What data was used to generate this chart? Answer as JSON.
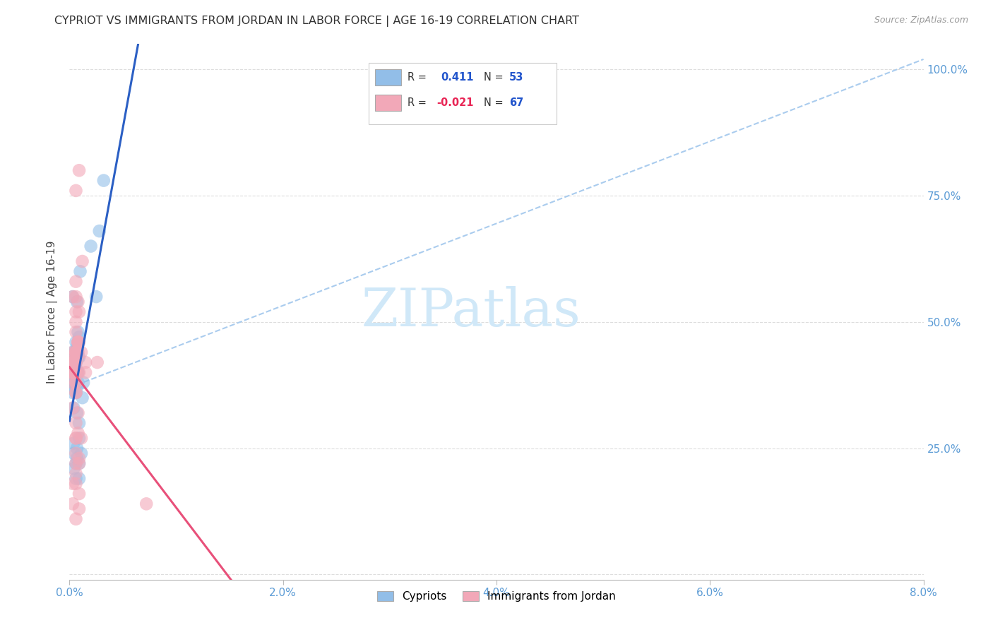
{
  "title": "CYPRIOT VS IMMIGRANTS FROM JORDAN IN LABOR FORCE | AGE 16-19 CORRELATION CHART",
  "source": "Source: ZipAtlas.com",
  "ylabel": "In Labor Force | Age 16-19",
  "x_min": 0.0,
  "x_max": 0.08,
  "y_min": 0.0,
  "y_max": 1.0,
  "x_ticks": [
    0.0,
    0.02,
    0.04,
    0.06,
    0.08
  ],
  "x_tick_labels": [
    "0.0%",
    "2.0%",
    "4.0%",
    "6.0%",
    "8.0%"
  ],
  "y_ticks": [
    0.0,
    0.25,
    0.5,
    0.75,
    1.0
  ],
  "y_tick_labels_right": [
    "",
    "25.0%",
    "50.0%",
    "75.0%",
    "100.0%"
  ],
  "legend_blue_r": "R =  0.411",
  "legend_blue_n": "N = 53",
  "legend_pink_r": "R = -0.021",
  "legend_pink_n": "N = 67",
  "blue_color": "#92BEE8",
  "pink_color": "#F2A8B8",
  "blue_line_color": "#2B5FC4",
  "pink_line_color": "#E8507A",
  "dashed_line_color": "#AACCEE",
  "tick_color": "#5B9BD5",
  "grid_color": "#DDDDDD",
  "watermark_text": "ZIPatlas",
  "watermark_color": "#D0E8F8",
  "cypriot_x": [
    0.0002,
    0.0005,
    0.0003,
    0.0008,
    0.0004,
    0.0006,
    0.0007,
    0.0003,
    0.0004,
    0.0009,
    0.0003,
    0.0006,
    0.0008,
    0.0004,
    0.0007,
    0.0003,
    0.0004,
    0.0006,
    0.0008,
    0.0005,
    0.0003,
    0.0006,
    0.001,
    0.0008,
    0.0007,
    0.0009,
    0.0006,
    0.0004,
    0.0003,
    0.0007,
    0.0012,
    0.0006,
    0.0009,
    0.0009,
    0.0011,
    0.0006,
    0.0004,
    0.0007,
    0.0007,
    0.0004,
    0.0009,
    0.0006,
    0.0004,
    0.0007,
    0.0007,
    0.0004,
    0.0006,
    0.0013,
    0.0009,
    0.002,
    0.0028,
    0.0032,
    0.0025
  ],
  "cypriot_y": [
    0.42,
    0.44,
    0.4,
    0.43,
    0.38,
    0.42,
    0.4,
    0.44,
    0.42,
    0.43,
    0.38,
    0.42,
    0.48,
    0.4,
    0.54,
    0.55,
    0.43,
    0.46,
    0.4,
    0.4,
    0.37,
    0.41,
    0.6,
    0.38,
    0.45,
    0.47,
    0.4,
    0.38,
    0.36,
    0.44,
    0.35,
    0.36,
    0.3,
    0.27,
    0.24,
    0.42,
    0.33,
    0.37,
    0.32,
    0.26,
    0.19,
    0.22,
    0.24,
    0.25,
    0.23,
    0.21,
    0.19,
    0.38,
    0.22,
    0.65,
    0.68,
    0.78,
    0.55
  ],
  "jordan_x": [
    0.0002,
    0.0004,
    0.0006,
    0.0003,
    0.0004,
    0.0006,
    0.0003,
    0.0008,
    0.0006,
    0.0006,
    0.0003,
    0.0006,
    0.0008,
    0.0003,
    0.0006,
    0.0003,
    0.0006,
    0.0008,
    0.0003,
    0.0006,
    0.0008,
    0.0006,
    0.0003,
    0.0006,
    0.0006,
    0.0003,
    0.0008,
    0.0006,
    0.0003,
    0.0011,
    0.0006,
    0.0008,
    0.0006,
    0.0003,
    0.0006,
    0.0008,
    0.0026,
    0.0008,
    0.0006,
    0.0008,
    0.0015,
    0.0011,
    0.0006,
    0.0006,
    0.0009,
    0.0003,
    0.0006,
    0.0006,
    0.0009,
    0.0012,
    0.0006,
    0.0009,
    0.0009,
    0.0006,
    0.0009,
    0.0006,
    0.0003,
    0.0015,
    0.0009,
    0.0006,
    0.0072,
    0.0006,
    0.0009,
    0.0006,
    0.0009,
    0.0006,
    0.0003
  ],
  "jordan_y": [
    0.42,
    0.43,
    0.44,
    0.4,
    0.42,
    0.4,
    0.38,
    0.44,
    0.42,
    0.4,
    0.4,
    0.44,
    0.46,
    0.4,
    0.42,
    0.55,
    0.58,
    0.46,
    0.44,
    0.48,
    0.46,
    0.44,
    0.42,
    0.52,
    0.4,
    0.42,
    0.54,
    0.5,
    0.4,
    0.44,
    0.38,
    0.46,
    0.36,
    0.33,
    0.3,
    0.32,
    0.42,
    0.4,
    0.27,
    0.28,
    0.4,
    0.27,
    0.27,
    0.36,
    0.13,
    0.14,
    0.11,
    0.18,
    0.16,
    0.62,
    0.55,
    0.52,
    0.46,
    0.44,
    0.8,
    0.76,
    0.42,
    0.42,
    0.4,
    0.38,
    0.14,
    0.22,
    0.23,
    0.24,
    0.22,
    0.2,
    0.18
  ]
}
